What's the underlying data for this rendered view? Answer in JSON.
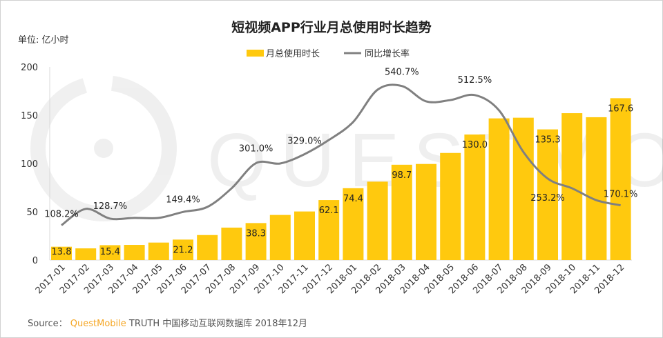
{
  "chart_data": {
    "type": "bar+line",
    "title": "短视频APP行业月总使用时长趋势",
    "unit_label": "单位: 亿小时",
    "categories": [
      "2017-01",
      "2017-02",
      "2017-03",
      "2017-04",
      "2017-05",
      "2017-06",
      "2017-07",
      "2017-08",
      "2017-09",
      "2017-10",
      "2017-11",
      "2017-12",
      "2018-01",
      "2018-02",
      "2018-03",
      "2018-04",
      "2018-05",
      "2018-06",
      "2018-07",
      "2018-08",
      "2018-09",
      "2018-10",
      "2018-11",
      "2018-12"
    ],
    "yticks": [
      "0",
      "50",
      "100",
      "150",
      "200"
    ],
    "ylim": [
      0,
      200
    ],
    "y2lim": [
      0,
      600
    ],
    "legend_position": "top-center",
    "series": [
      {
        "name": "月总使用时长",
        "type": "bar",
        "color": "#FFC90E",
        "values": [
          13.8,
          12.1,
          15.4,
          15.7,
          18.1,
          21.2,
          25.9,
          33.6,
          38.3,
          46.7,
          50.3,
          62.1,
          74.4,
          81.2,
          98.7,
          99.5,
          110.9,
          130.0,
          146.7,
          147.4,
          135.3,
          152.1,
          147.9,
          167.6
        ],
        "labels": [
          "13.8",
          "",
          "15.4",
          "",
          "",
          "21.2",
          "",
          "",
          "38.3",
          "",
          "",
          "62.1",
          "74.4",
          "",
          "98.7",
          "",
          "",
          "130.0",
          "",
          "",
          "135.3",
          "",
          "",
          "167.6"
        ]
      },
      {
        "name": "同比增长率",
        "type": "line",
        "axis": "secondary",
        "color": "#808080",
        "values": [
          108.2,
          159,
          128.7,
          131,
          131,
          149.4,
          165,
          223,
          301.0,
          300,
          329.0,
          373,
          429,
          529,
          540.7,
          493,
          497,
          512.5,
          465,
          336,
          253.2,
          223,
          186,
          170.1
        ],
        "labels": [
          "108.2%",
          "",
          "128.7%",
          "",
          "",
          "149.4%",
          "",
          "",
          "301.0%",
          "",
          "329.0%",
          "",
          "",
          "",
          "540.7%",
          "",
          "",
          "512.5%",
          "",
          "",
          "253.2%",
          "",
          "",
          "170.1%"
        ]
      }
    ]
  },
  "source": {
    "prefix": "Source：",
    "brand": "QuestMobile",
    "text": "TRUTH 中国移动互联网数据库 2018年12月"
  },
  "watermark": "QUESTMOBILE"
}
